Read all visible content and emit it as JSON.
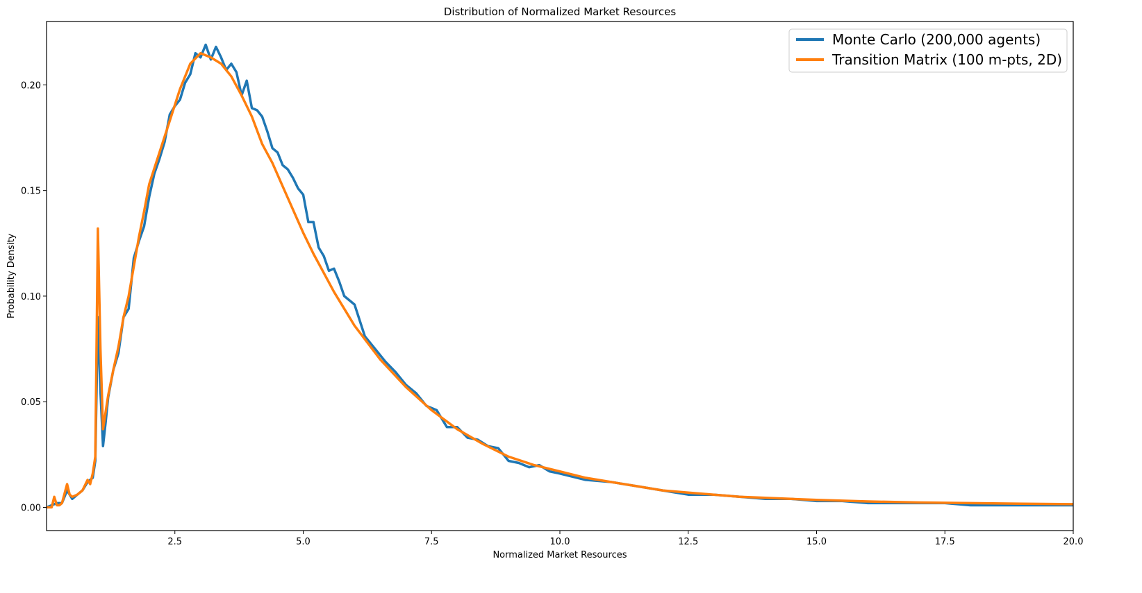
{
  "chart_data": {
    "type": "line",
    "title": "Distribution of Normalized Market Resources",
    "xlabel": "Normalized Market Resources",
    "ylabel": "Probability Density",
    "xlim": [
      0.0,
      20.0
    ],
    "ylim": [
      -0.011,
      0.23
    ],
    "grid": false,
    "legend_position": "upper right",
    "x_ticks": [
      2.5,
      5.0,
      7.5,
      10.0,
      12.5,
      15.0,
      17.5,
      20.0
    ],
    "x_tick_labels": [
      "2.5",
      "5.0",
      "7.5",
      "10.0",
      "12.5",
      "15.0",
      "17.5",
      "20.0"
    ],
    "y_ticks": [
      0.0,
      0.05,
      0.1,
      0.15,
      0.2
    ],
    "y_tick_labels": [
      "0.00",
      "0.05",
      "0.10",
      "0.15",
      "0.20"
    ],
    "series": [
      {
        "name": "Monte Carlo (200,000 agents)",
        "color": "#1f77b4",
        "x": [
          0.0,
          0.1,
          0.2,
          0.3,
          0.4,
          0.5,
          0.6,
          0.7,
          0.8,
          0.9,
          0.95,
          1.0,
          1.05,
          1.1,
          1.15,
          1.2,
          1.3,
          1.4,
          1.5,
          1.6,
          1.7,
          1.8,
          1.9,
          2.0,
          2.1,
          2.2,
          2.3,
          2.4,
          2.5,
          2.6,
          2.7,
          2.8,
          2.9,
          3.0,
          3.1,
          3.2,
          3.3,
          3.4,
          3.5,
          3.6,
          3.7,
          3.8,
          3.9,
          4.0,
          4.1,
          4.2,
          4.3,
          4.4,
          4.5,
          4.6,
          4.7,
          4.8,
          4.9,
          5.0,
          5.1,
          5.2,
          5.3,
          5.4,
          5.5,
          5.6,
          5.7,
          5.8,
          5.9,
          6.0,
          6.2,
          6.4,
          6.6,
          6.8,
          7.0,
          7.2,
          7.4,
          7.6,
          7.8,
          8.0,
          8.2,
          8.4,
          8.6,
          8.8,
          9.0,
          9.2,
          9.4,
          9.6,
          9.8,
          10.0,
          10.5,
          11.0,
          11.5,
          12.0,
          12.5,
          13.0,
          13.5,
          14.0,
          14.5,
          15.0,
          15.5,
          16.0,
          16.5,
          17.0,
          17.5,
          18.0,
          18.5,
          19.0,
          19.5,
          20.0
        ],
        "y": [
          0.0,
          0.001,
          0.002,
          0.002,
          0.008,
          0.004,
          0.006,
          0.008,
          0.012,
          0.014,
          0.022,
          0.09,
          0.055,
          0.029,
          0.04,
          0.052,
          0.065,
          0.073,
          0.09,
          0.094,
          0.118,
          0.126,
          0.133,
          0.147,
          0.158,
          0.165,
          0.173,
          0.186,
          0.19,
          0.193,
          0.201,
          0.205,
          0.215,
          0.213,
          0.219,
          0.212,
          0.218,
          0.213,
          0.207,
          0.21,
          0.206,
          0.195,
          0.202,
          0.189,
          0.188,
          0.185,
          0.178,
          0.17,
          0.168,
          0.162,
          0.16,
          0.156,
          0.151,
          0.148,
          0.135,
          0.135,
          0.123,
          0.119,
          0.112,
          0.113,
          0.107,
          0.1,
          0.098,
          0.096,
          0.081,
          0.075,
          0.069,
          0.064,
          0.058,
          0.054,
          0.048,
          0.046,
          0.038,
          0.038,
          0.033,
          0.032,
          0.029,
          0.028,
          0.022,
          0.021,
          0.019,
          0.02,
          0.017,
          0.016,
          0.013,
          0.012,
          0.01,
          0.008,
          0.006,
          0.006,
          0.005,
          0.004,
          0.004,
          0.003,
          0.003,
          0.002,
          0.002,
          0.002,
          0.002,
          0.001,
          0.001,
          0.001,
          0.001,
          0.001
        ]
      },
      {
        "name": "Transition Matrix (100 m-pts, 2D)",
        "color": "#ff7f0e",
        "x": [
          0.0,
          0.1,
          0.15,
          0.2,
          0.25,
          0.3,
          0.4,
          0.45,
          0.5,
          0.6,
          0.7,
          0.8,
          0.85,
          0.9,
          0.95,
          1.0,
          1.05,
          1.1,
          1.15,
          1.2,
          1.3,
          1.4,
          1.5,
          1.6,
          1.7,
          1.8,
          1.9,
          2.0,
          2.2,
          2.4,
          2.6,
          2.8,
          3.0,
          3.2,
          3.4,
          3.6,
          3.8,
          4.0,
          4.2,
          4.4,
          4.6,
          4.8,
          5.0,
          5.2,
          5.4,
          5.6,
          5.8,
          6.0,
          6.5,
          7.0,
          7.5,
          8.0,
          8.5,
          9.0,
          9.5,
          10.0,
          10.5,
          11.0,
          11.5,
          12.0,
          12.5,
          13.0,
          13.5,
          14.0,
          14.5,
          15.0,
          16.0,
          17.0,
          18.0,
          19.0,
          20.0
        ],
        "y": [
          0.0,
          0.0,
          0.005,
          0.001,
          0.001,
          0.002,
          0.011,
          0.006,
          0.005,
          0.006,
          0.008,
          0.013,
          0.011,
          0.016,
          0.024,
          0.132,
          0.075,
          0.037,
          0.045,
          0.053,
          0.065,
          0.076,
          0.09,
          0.1,
          0.114,
          0.128,
          0.14,
          0.153,
          0.168,
          0.183,
          0.198,
          0.21,
          0.215,
          0.213,
          0.21,
          0.204,
          0.195,
          0.185,
          0.172,
          0.163,
          0.152,
          0.141,
          0.13,
          0.12,
          0.111,
          0.102,
          0.094,
          0.086,
          0.07,
          0.057,
          0.046,
          0.037,
          0.03,
          0.024,
          0.02,
          0.017,
          0.014,
          0.012,
          0.01,
          0.008,
          0.007,
          0.006,
          0.005,
          0.0045,
          0.004,
          0.0035,
          0.0028,
          0.0023,
          0.002,
          0.0017,
          0.0015
        ]
      }
    ]
  },
  "plot": {
    "title": "Distribution of Normalized Market Resources",
    "xlabel": "Normalized Market Resources",
    "ylabel": "Probability Density",
    "legend": [
      {
        "label": "Monte Carlo (200,000 agents)",
        "color": "#1f77b4"
      },
      {
        "label": "Transition Matrix (100 m-pts, 2D)",
        "color": "#ff7f0e"
      }
    ]
  }
}
